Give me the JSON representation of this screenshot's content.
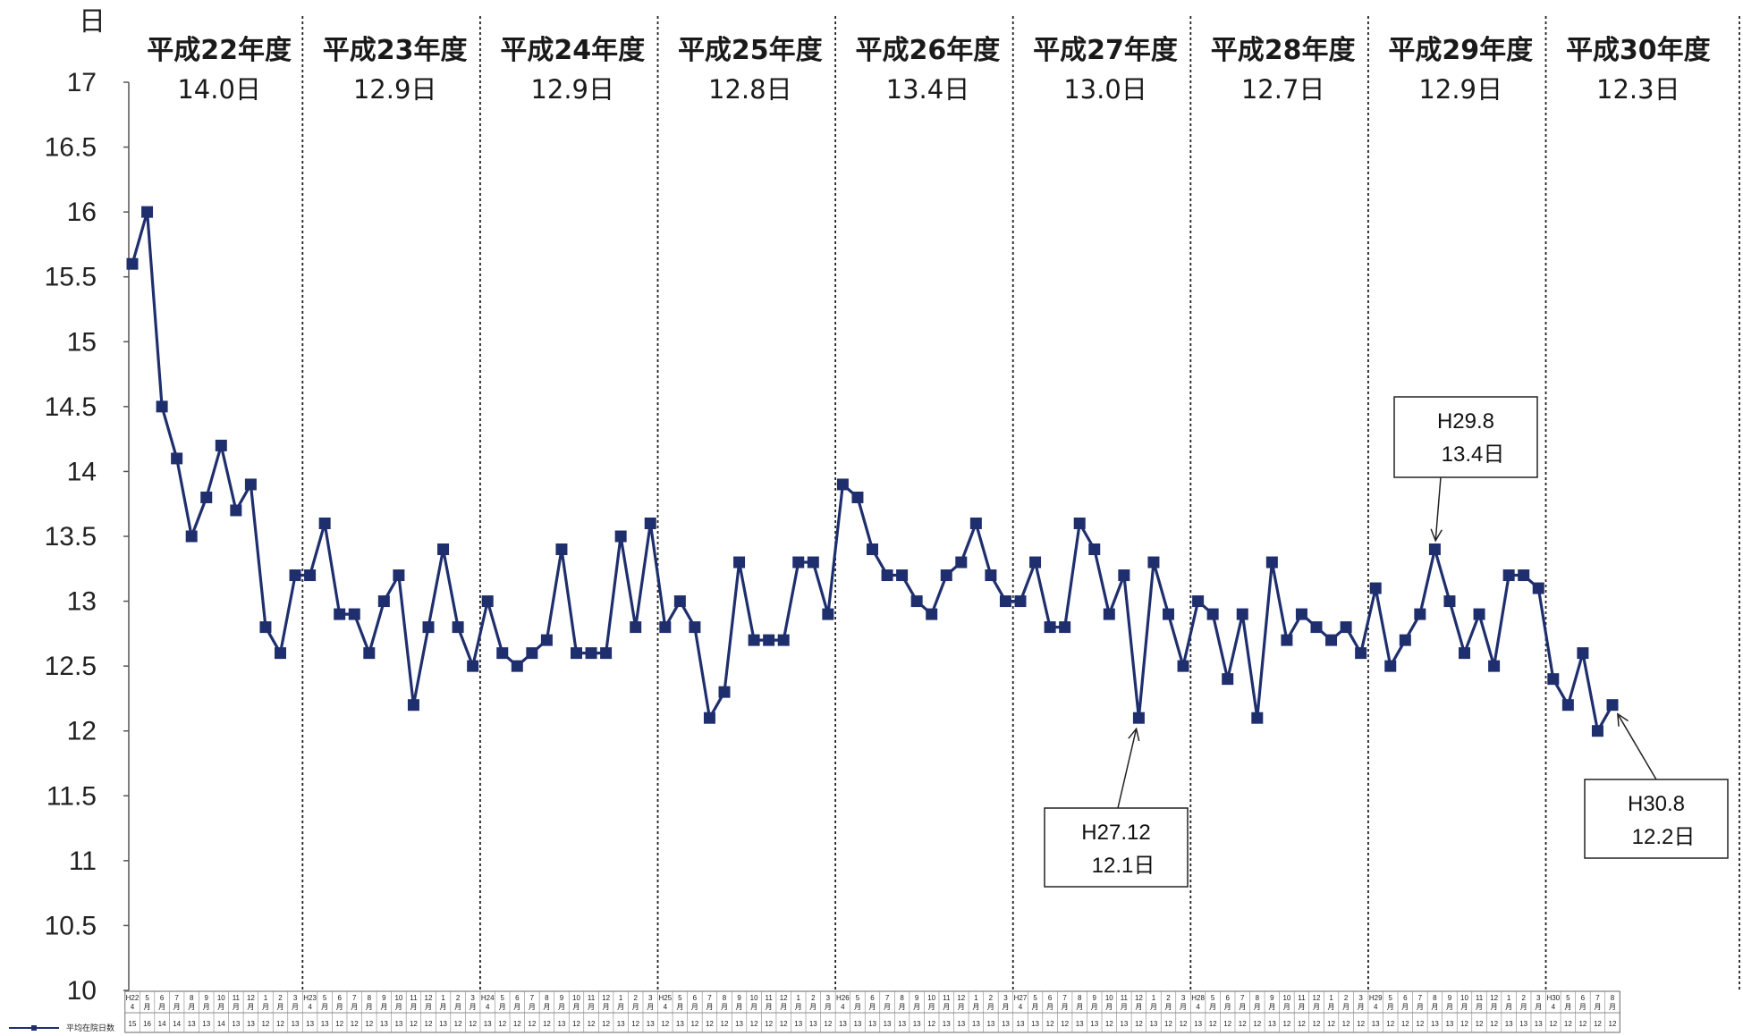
{
  "chart_data": {
    "type": "line",
    "y_unit": "日",
    "ylim": [
      10,
      17
    ],
    "y_ticks": [
      10,
      10.5,
      11,
      11.5,
      12,
      12.5,
      13,
      13.5,
      14,
      14.5,
      15,
      15.5,
      16,
      16.5,
      17
    ],
    "series": [
      {
        "name": "平均在院日数",
        "color": "#1f2f6e",
        "values": [
          15.6,
          16.0,
          14.5,
          14.1,
          13.5,
          13.8,
          14.2,
          13.7,
          13.9,
          12.8,
          12.6,
          13.2,
          13.2,
          13.6,
          12.9,
          12.9,
          12.6,
          13.0,
          13.2,
          12.2,
          12.8,
          13.4,
          12.8,
          12.5,
          13.0,
          12.6,
          12.5,
          12.6,
          12.7,
          13.4,
          12.6,
          12.6,
          12.6,
          13.5,
          12.8,
          13.6,
          12.8,
          13.0,
          12.8,
          12.1,
          12.3,
          13.3,
          12.7,
          12.7,
          12.7,
          13.3,
          13.3,
          12.9,
          13.9,
          13.8,
          13.4,
          13.2,
          13.2,
          13.0,
          12.9,
          13.2,
          13.3,
          13.6,
          13.2,
          13.0,
          13.0,
          13.3,
          12.8,
          12.8,
          13.6,
          13.4,
          12.9,
          13.2,
          12.1,
          13.3,
          12.9,
          12.5,
          13.0,
          12.9,
          12.4,
          12.9,
          12.1,
          13.3,
          12.7,
          12.9,
          12.8,
          12.7,
          12.8,
          12.6,
          13.1,
          12.5,
          12.7,
          12.9,
          13.4,
          13.0,
          12.6,
          12.9,
          12.5,
          13.2,
          13.2,
          13.1,
          12.4,
          12.2,
          12.6,
          12.0,
          12.2
        ]
      }
    ],
    "fiscal_years": [
      {
        "name": "平成22年度",
        "avg": "14.0日",
        "start": 0
      },
      {
        "name": "平成23年度",
        "avg": "12.9日",
        "start": 12
      },
      {
        "name": "平成24年度",
        "avg": "12.9日",
        "start": 24
      },
      {
        "name": "平成25年度",
        "avg": "12.8日",
        "start": 36
      },
      {
        "name": "平成26年度",
        "avg": "13.4日",
        "start": 48
      },
      {
        "name": "平成27年度",
        "avg": "13.0日",
        "start": 60
      },
      {
        "name": "平成28年度",
        "avg": "12.7日",
        "start": 72
      },
      {
        "name": "平成29年度",
        "avg": "12.9日",
        "start": 84
      },
      {
        "name": "平成30年度",
        "avg": "12.3日",
        "start": 96
      }
    ],
    "month_labels": [
      "4",
      "5",
      "6",
      "7",
      "8",
      "9",
      "10",
      "11",
      "12",
      "1",
      "2",
      "3"
    ],
    "year_codes": [
      "H22",
      "H23",
      "H24",
      "H25",
      "H26",
      "H27",
      "H28",
      "H29",
      "H30"
    ],
    "month_suffix": "月",
    "annotations": [
      {
        "label": "H27.12",
        "value": "12.1日",
        "index": 68
      },
      {
        "label": "H29.8",
        "value": "13.4日",
        "index": 88
      },
      {
        "label": "H30.8",
        "value": "12.2日",
        "index": 100
      }
    ],
    "legend": "平均在院日数",
    "grid": false
  }
}
